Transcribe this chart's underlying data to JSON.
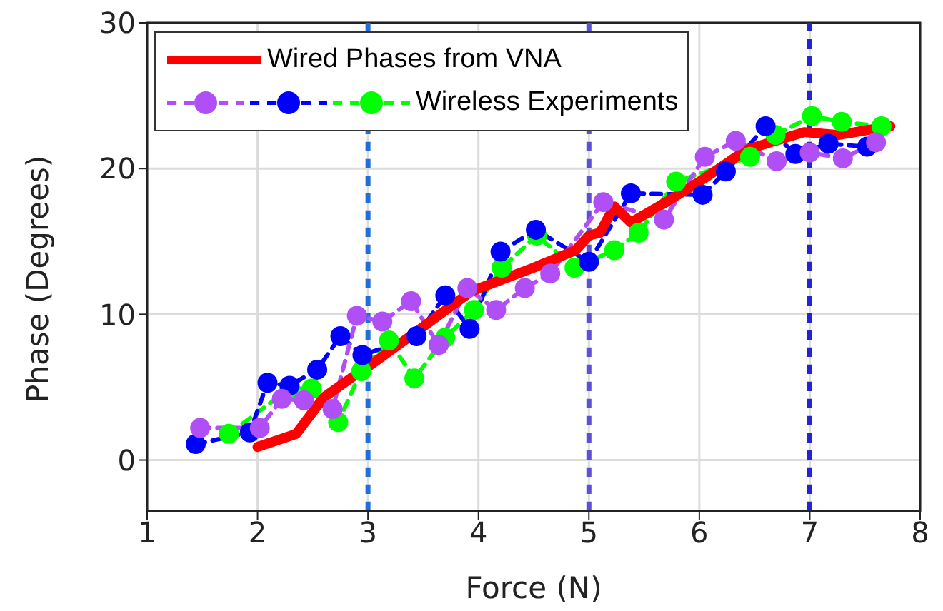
{
  "chart_data": {
    "type": "line",
    "xlabel": "Force (N)",
    "ylabel": "Phase (Degrees)",
    "xlim": [
      1,
      8
    ],
    "xticks": [
      1,
      2,
      3,
      4,
      5,
      6,
      7,
      8
    ],
    "ylim": [
      -3.5,
      30
    ],
    "yticks": [
      0,
      10,
      20,
      30
    ],
    "grid": true,
    "legend": "top left",
    "ref_lines": [
      {
        "axis": "x",
        "value": 3,
        "color": "#1f6fd6",
        "line_style": "dashed"
      },
      {
        "axis": "x",
        "value": 5,
        "color": "#5e4fd8",
        "line_style": "dashed"
      },
      {
        "axis": "x",
        "value": 7,
        "color": "#2424d4",
        "line_style": "dashed"
      }
    ],
    "series": [
      {
        "name": "Wired Phases from VNA",
        "color": "#ff0000",
        "marker": "none",
        "line_style": "solid",
        "x": [
          2.0,
          2.35,
          2.6,
          2.86,
          3.0,
          3.42,
          3.94,
          4.5,
          4.88,
          5.0,
          5.1,
          5.23,
          5.38,
          5.7,
          6.0,
          6.43,
          6.95,
          7.26,
          7.73
        ],
        "values": [
          0.9,
          1.8,
          4.3,
          5.7,
          6.4,
          8.7,
          11.6,
          13.2,
          14.4,
          15.4,
          15.6,
          17.4,
          16.3,
          17.7,
          19.1,
          21.3,
          22.5,
          22.3,
          22.9
        ]
      },
      {
        "color": "#b04ff5",
        "marker": "circle",
        "line_style": "dashed",
        "x": [
          1.48,
          2.02,
          2.22,
          2.42,
          2.68,
          2.9,
          3.13,
          3.39,
          3.64,
          3.9,
          4.16,
          4.42,
          4.65,
          5.13,
          5.68,
          6.05,
          6.33,
          6.7,
          7.0,
          7.3,
          7.6
        ],
        "values": [
          2.2,
          2.2,
          4.2,
          4.1,
          3.5,
          9.9,
          9.5,
          10.9,
          7.9,
          11.8,
          10.3,
          11.8,
          12.8,
          17.7,
          16.5,
          20.8,
          21.9,
          20.5,
          21.1,
          20.7,
          21.8
        ]
      },
      {
        "color": "#0000ff",
        "marker": "circle",
        "line_style": "dashed",
        "x": [
          1.44,
          1.93,
          2.09,
          2.29,
          2.54,
          2.75,
          2.95,
          3.44,
          3.7,
          3.92,
          4.2,
          4.52,
          5.0,
          5.38,
          6.03,
          6.24,
          6.6,
          6.87,
          7.17,
          7.52
        ],
        "values": [
          1.1,
          1.9,
          5.3,
          5.1,
          6.2,
          8.5,
          7.2,
          8.5,
          11.3,
          9.0,
          14.3,
          15.8,
          13.6,
          18.3,
          18.2,
          19.8,
          22.9,
          21.0,
          21.7,
          21.5
        ]
      },
      {
        "name": "Wireless Experiments",
        "color": "#00ff00",
        "marker": "circle",
        "line_style": "dashed",
        "x": [
          1.74,
          2.29,
          2.49,
          2.73,
          2.94,
          3.19,
          3.42,
          3.7,
          3.96,
          4.21,
          4.53,
          4.87,
          5.23,
          5.45,
          5.79,
          6.46,
          6.69,
          7.02,
          7.29,
          7.65
        ],
        "values": [
          1.8,
          4.9,
          4.9,
          2.6,
          6.1,
          8.2,
          5.6,
          8.4,
          10.3,
          13.2,
          15.4,
          13.2,
          14.4,
          15.6,
          19.1,
          20.8,
          22.3,
          23.6,
          23.2,
          22.9
        ]
      }
    ]
  }
}
